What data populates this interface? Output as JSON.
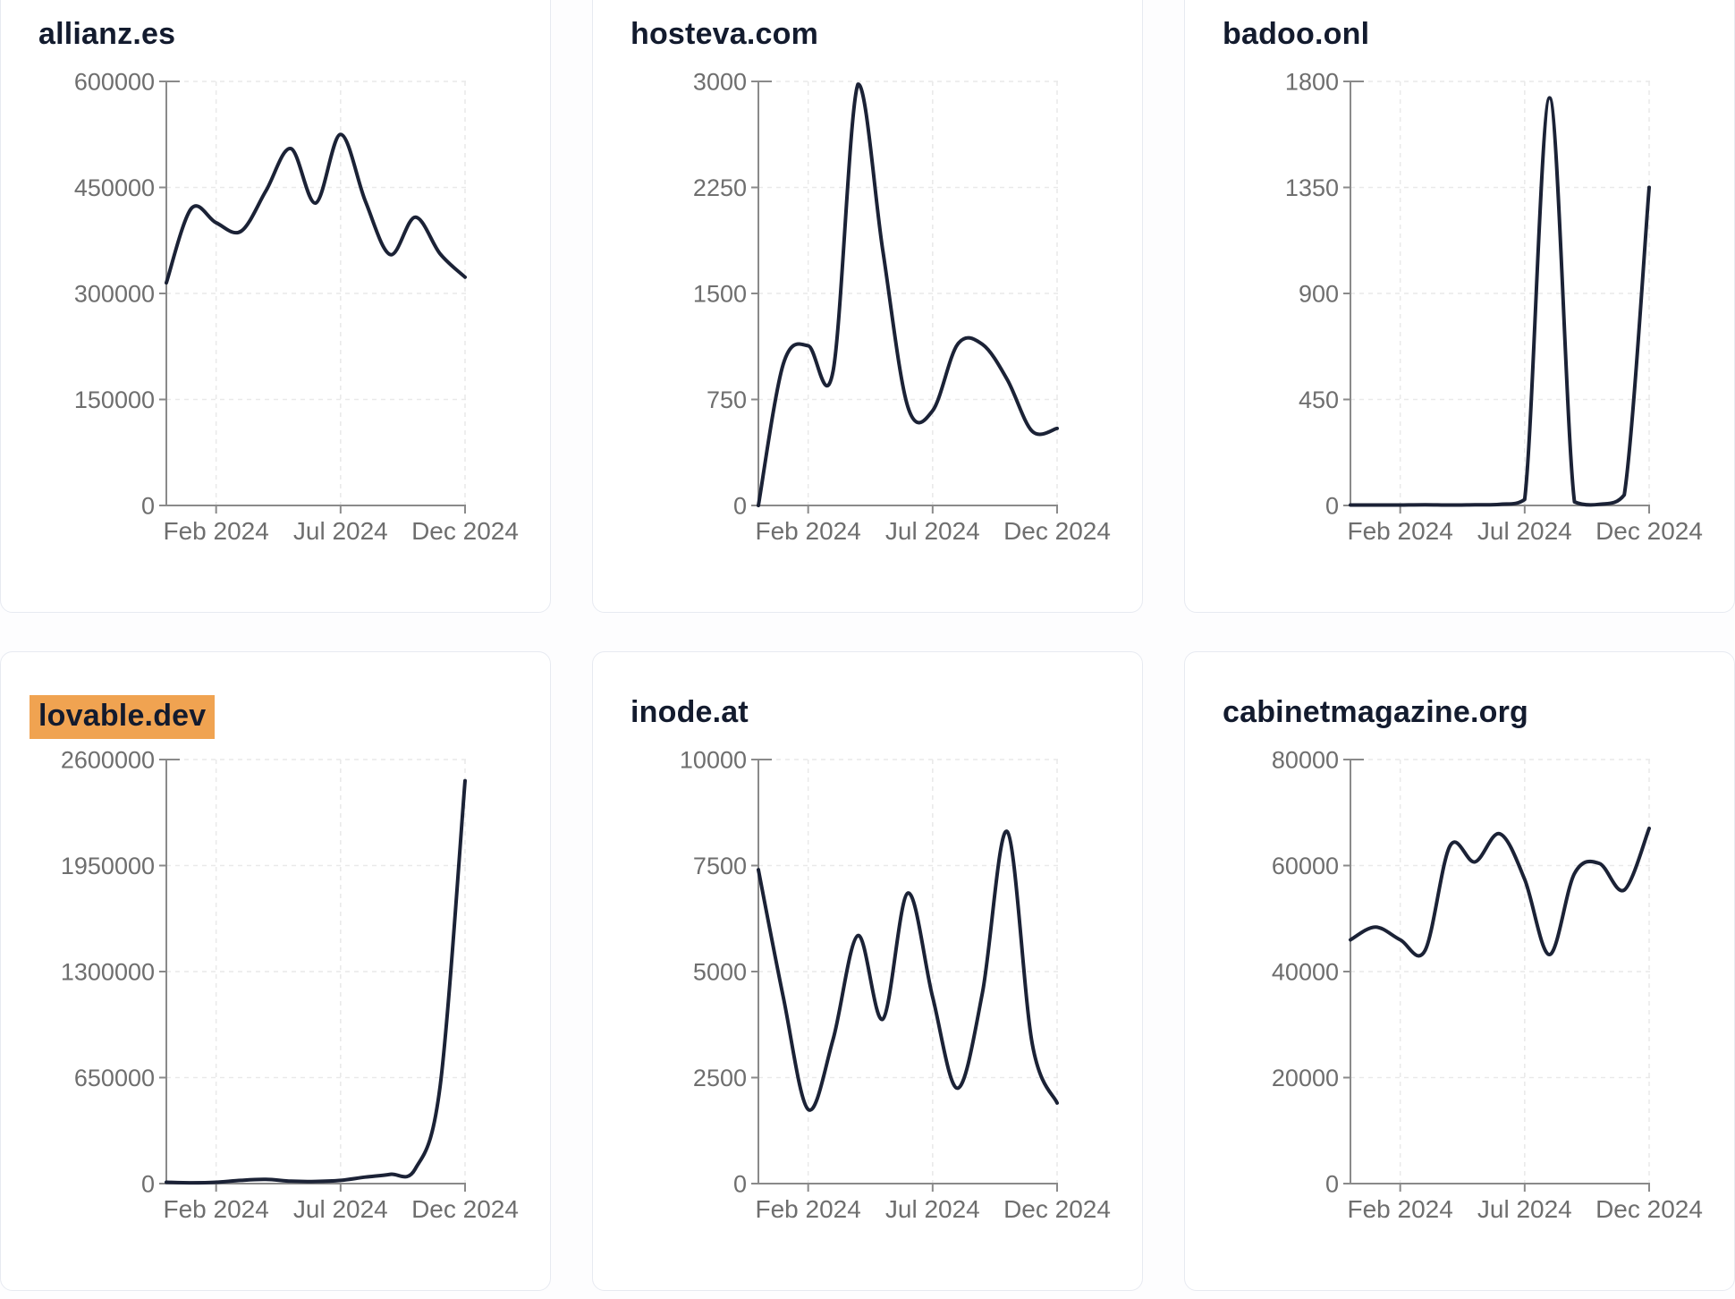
{
  "page": {
    "background": "#fdfdfe",
    "card_background": "#ffffff",
    "card_border": "#e7eaf1",
    "highlight_color": "#f0a351",
    "line_color": "#1b2236",
    "axis_color": "#8a8a8a",
    "tick_label_color": "#6e6e6e",
    "title_color": "#131b2e"
  },
  "chart_data": [
    {
      "type": "line",
      "title": "allianz.es",
      "highlighted": false,
      "x": [
        "Dec 2023",
        "Jan 2024",
        "Feb 2024",
        "Mar 2024",
        "Apr 2024",
        "May 2024",
        "Jun 2024",
        "Jul 2024",
        "Aug 2024",
        "Sep 2024",
        "Oct 2024",
        "Nov 2024",
        "Dec 2024"
      ],
      "values": [
        315000,
        420000,
        400000,
        388000,
        445000,
        505000,
        428000,
        525000,
        430000,
        355000,
        408000,
        356000,
        323000
      ],
      "x_tick_labels": [
        "Feb 2024",
        "Jul 2024",
        "Dec 2024"
      ],
      "yticks": [
        0,
        150000,
        300000,
        450000,
        600000
      ],
      "ylim": [
        0,
        600000
      ],
      "grid": true,
      "legend": false
    },
    {
      "type": "line",
      "title": "hosteva.com",
      "highlighted": false,
      "x": [
        "Dec 2023",
        "Jan 2024",
        "Feb 2024",
        "Mar 2024",
        "Apr 2024",
        "May 2024",
        "Jun 2024",
        "Jul 2024",
        "Aug 2024",
        "Sep 2024",
        "Oct 2024",
        "Nov 2024",
        "Dec 2024"
      ],
      "values": [
        0,
        1000,
        1130,
        950,
        2980,
        1800,
        700,
        670,
        1140,
        1140,
        890,
        525,
        545
      ],
      "x_tick_labels": [
        "Feb 2024",
        "Jul 2024",
        "Dec 2024"
      ],
      "yticks": [
        0,
        750,
        1500,
        2250,
        3000
      ],
      "ylim": [
        0,
        3000
      ],
      "grid": true,
      "legend": false
    },
    {
      "type": "line",
      "title": "badoo.onl",
      "highlighted": false,
      "x": [
        "Dec 2023",
        "Jan 2024",
        "Feb 2024",
        "Mar 2024",
        "Apr 2024",
        "May 2024",
        "Jun 2024",
        "Jul 2024",
        "Aug 2024",
        "Sep 2024",
        "Oct 2024",
        "Nov 2024",
        "Dec 2024"
      ],
      "values": [
        2,
        2,
        2,
        3,
        2,
        3,
        5,
        25,
        1730,
        15,
        5,
        45,
        1350
      ],
      "x_tick_labels": [
        "Feb 2024",
        "Jul 2024",
        "Dec 2024"
      ],
      "yticks": [
        0,
        450,
        900,
        1350,
        1800
      ],
      "ylim": [
        0,
        1800
      ],
      "grid": true,
      "legend": false
    },
    {
      "type": "line",
      "title": "lovable.dev",
      "highlighted": true,
      "x": [
        "Dec 2023",
        "Jan 2024",
        "Feb 2024",
        "Mar 2024",
        "Apr 2024",
        "May 2024",
        "Jun 2024",
        "Jul 2024",
        "Aug 2024",
        "Sep 2024",
        "Oct 2024",
        "Nov 2024",
        "Dec 2024"
      ],
      "values": [
        8000,
        5000,
        8000,
        20000,
        26000,
        15000,
        13000,
        20000,
        40000,
        57000,
        90000,
        600000,
        2470000
      ],
      "x_tick_labels": [
        "Feb 2024",
        "Jul 2024",
        "Dec 2024"
      ],
      "yticks": [
        0,
        650000,
        1300000,
        1950000,
        2600000
      ],
      "ylim": [
        0,
        2600000
      ],
      "grid": true,
      "legend": false
    },
    {
      "type": "line",
      "title": "inode.at",
      "highlighted": false,
      "x": [
        "Dec 2023",
        "Jan 2024",
        "Feb 2024",
        "Mar 2024",
        "Apr 2024",
        "May 2024",
        "Jun 2024",
        "Jul 2024",
        "Aug 2024",
        "Sep 2024",
        "Oct 2024",
        "Nov 2024",
        "Dec 2024"
      ],
      "values": [
        7400,
        4400,
        1750,
        3400,
        5850,
        3880,
        6850,
        4400,
        2250,
        4500,
        8300,
        3300,
        1900
      ],
      "x_tick_labels": [
        "Feb 2024",
        "Jul 2024",
        "Dec 2024"
      ],
      "yticks": [
        0,
        2500,
        5000,
        7500,
        10000
      ],
      "ylim": [
        0,
        10000
      ],
      "grid": true,
      "legend": false
    },
    {
      "type": "line",
      "title": "cabinetmagazine.org",
      "highlighted": false,
      "x": [
        "Dec 2023",
        "Jan 2024",
        "Feb 2024",
        "Mar 2024",
        "Apr 2024",
        "May 2024",
        "Jun 2024",
        "Jul 2024",
        "Aug 2024",
        "Sep 2024",
        "Oct 2024",
        "Nov 2024",
        "Dec 2024"
      ],
      "values": [
        46000,
        48400,
        46000,
        44000,
        63700,
        60700,
        66000,
        57400,
        43200,
        58500,
        60400,
        55400,
        67000
      ],
      "x_tick_labels": [
        "Feb 2024",
        "Jul 2024",
        "Dec 2024"
      ],
      "yticks": [
        0,
        20000,
        40000,
        60000,
        80000
      ],
      "ylim": [
        0,
        80000
      ],
      "grid": true,
      "legend": false
    }
  ]
}
